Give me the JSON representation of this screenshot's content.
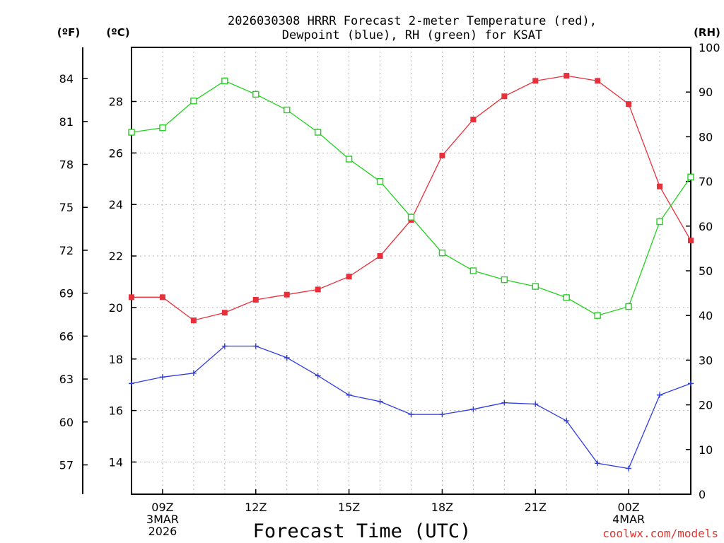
{
  "chart_data": {
    "type": "line",
    "title_line1": "2026030308 HRRR Forecast 2-meter Temperature (red),",
    "title_line2": "Dewpoint (blue), RH (green) for KSAT",
    "xlabel": "Forecast Time (UTC)",
    "credit": "coolwx.com/models",
    "unit_labels": {
      "fahrenheit": "(ºF)",
      "celsius": "(ºC)",
      "rh": "(RH)"
    },
    "x_hours": [
      8,
      9,
      10,
      11,
      12,
      13,
      14,
      15,
      16,
      17,
      18,
      19,
      20,
      21,
      22,
      23,
      24,
      25,
      26
    ],
    "x_ticks": [
      {
        "hour": 9,
        "lines": [
          "09Z",
          "3MAR",
          "2026"
        ]
      },
      {
        "hour": 12,
        "lines": [
          "12Z"
        ]
      },
      {
        "hour": 15,
        "lines": [
          "15Z"
        ]
      },
      {
        "hour": 18,
        "lines": [
          "18Z"
        ]
      },
      {
        "hour": 21,
        "lines": [
          "21Z"
        ]
      },
      {
        "hour": 24,
        "lines": [
          "00Z",
          "4MAR"
        ]
      }
    ],
    "celsius_axis": {
      "range": [
        12.75,
        30.1
      ],
      "ticks": [
        "14",
        "16",
        "18",
        "20",
        "22",
        "24",
        "26",
        "28"
      ]
    },
    "fahrenheit_ticks": [
      "57",
      "60",
      "63",
      "66",
      "69",
      "72",
      "75",
      "78",
      "81",
      "84"
    ],
    "rh_axis": {
      "range": [
        0,
        100
      ],
      "ticks": [
        "0",
        "10",
        "20",
        "30",
        "40",
        "50",
        "60",
        "70",
        "80",
        "90",
        "100"
      ]
    },
    "series": [
      {
        "name": "Temperature",
        "unit": "C",
        "color": "#e8303a",
        "marker": "filled-square",
        "values": [
          20.4,
          20.4,
          19.5,
          19.8,
          20.3,
          20.5,
          20.7,
          21.2,
          22.0,
          23.4,
          25.9,
          27.3,
          28.2,
          28.8,
          29.0,
          28.8,
          27.9,
          24.7,
          22.6
        ]
      },
      {
        "name": "Dewpoint",
        "unit": "C",
        "color": "#2f3ce0",
        "marker": "plus",
        "values": [
          17.05,
          17.3,
          17.45,
          18.5,
          18.5,
          18.05,
          17.35,
          16.6,
          16.35,
          15.85,
          15.85,
          16.05,
          16.3,
          16.25,
          15.6,
          13.95,
          13.75,
          16.6,
          17.05
        ]
      },
      {
        "name": "RH",
        "unit": "%",
        "color": "#22d11f",
        "marker": "open-square",
        "values": [
          81,
          82,
          88,
          92.5,
          89.5,
          86,
          81,
          75,
          70,
          62,
          54,
          50,
          48,
          46.5,
          44,
          40,
          42,
          61,
          71
        ]
      }
    ]
  }
}
